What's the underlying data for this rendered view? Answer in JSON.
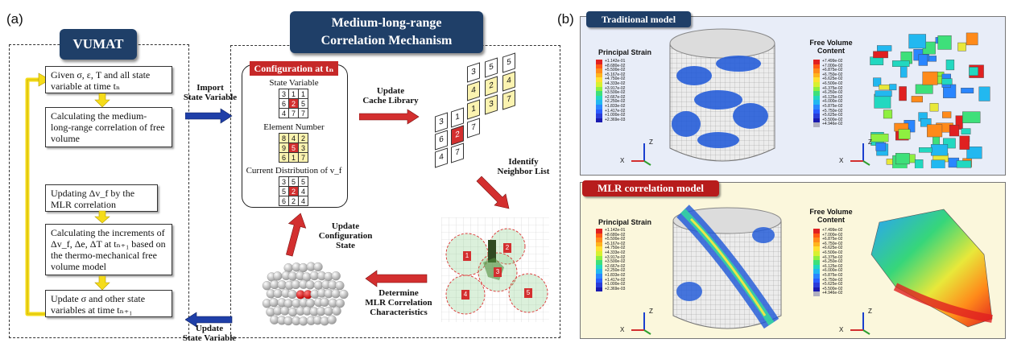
{
  "panels": {
    "a": "(a)",
    "b": "(b)"
  },
  "vumat": {
    "title": "VUMAT",
    "steps": [
      "Given σ, ε, T and all state variable at time tₙ",
      "Calculating the medium-long-range correlation of free volume",
      "Updating Δv_f by the MLR correlation",
      "Calculating the increments of Δv_f, Δe, ΔT at tₙ₊₁ based on the thermo-mechanical free volume model",
      "Update σ and other state variables at time tₙ₊₁"
    ]
  },
  "mechanism": {
    "title_line1": "Medium-long-range",
    "title_line2": "Correlation Mechanism",
    "import_label": [
      "Import",
      "State Variable"
    ],
    "update_label": [
      "Update",
      "State Variable"
    ],
    "update_cache": [
      "Update",
      "Cache Library"
    ],
    "identify": [
      "Identify",
      "Neighbor List"
    ],
    "determine": [
      "Determine",
      "MLR Correlation",
      "Characteristics"
    ],
    "update_config": [
      "Update",
      "Configuration State"
    ],
    "configuration": {
      "title": "Configuration at tₙ",
      "state_variable_label": "State Variable",
      "element_number_label": "Element Number",
      "distribution_label": "Current Distribution of v_f",
      "state_variable": [
        [
          "3",
          "1",
          "1"
        ],
        [
          "6",
          "2",
          "5"
        ],
        [
          "4",
          "7",
          "7"
        ]
      ],
      "element_number": [
        [
          "8",
          "4",
          "2"
        ],
        [
          "9",
          "5",
          "3"
        ],
        [
          "6",
          "1",
          "7"
        ]
      ],
      "distribution": [
        [
          "3",
          "5",
          "5"
        ],
        [
          "5",
          "2",
          "4"
        ],
        [
          "6",
          "2",
          "4"
        ]
      ]
    },
    "cache": {
      "col1": [
        "3",
        "6",
        "4"
      ],
      "col2": [
        "1",
        "2",
        "7"
      ],
      "col3": [
        "3",
        "4",
        "1",
        "7"
      ],
      "col4": [
        "5",
        "2",
        "3"
      ],
      "col5": [
        "5",
        "4",
        "7"
      ]
    },
    "neighbors": [
      "1",
      "2",
      "3",
      "4",
      "5"
    ]
  },
  "right": {
    "traditional_title": "Traditional model",
    "mlr_title": "MLR correlation model",
    "principal_strain": "Principal Strain",
    "free_volume": [
      "Free Volume",
      "Content"
    ],
    "ps_values": [
      "+1.142e-01",
      "+8.680e-02",
      "+5.500e-02",
      "+5.167e-02",
      "+4.750e-02",
      "+4.333e-02",
      "+3.917e-02",
      "+3.500e-02",
      "+2.667e-02",
      "+2.250e-02",
      "+1.833e-02",
      "+1.417e-02",
      "+1.000e-02",
      "+2.369e-03"
    ],
    "fv_values": [
      "+7.499e-02",
      "+7.000e-02",
      "+6.875e-02",
      "+6.750e-02",
      "+6.625e-02",
      "+6.500e-02",
      "+6.375e-02",
      "+6.250e-02",
      "+6.125e-02",
      "+6.000e-02",
      "+5.875e-02",
      "+5.750e-02",
      "+5.625e-02",
      "+5.500e-02",
      "+4.946e-02"
    ],
    "axes": {
      "z": "Z",
      "x": "X",
      "y": "Y"
    },
    "colors": {
      "traditional_bg": "#e8edf8",
      "mlr_bg": "#fbf7dc",
      "traditional_title": "#1f3f68",
      "mlr_title": "#b71c1c"
    }
  }
}
